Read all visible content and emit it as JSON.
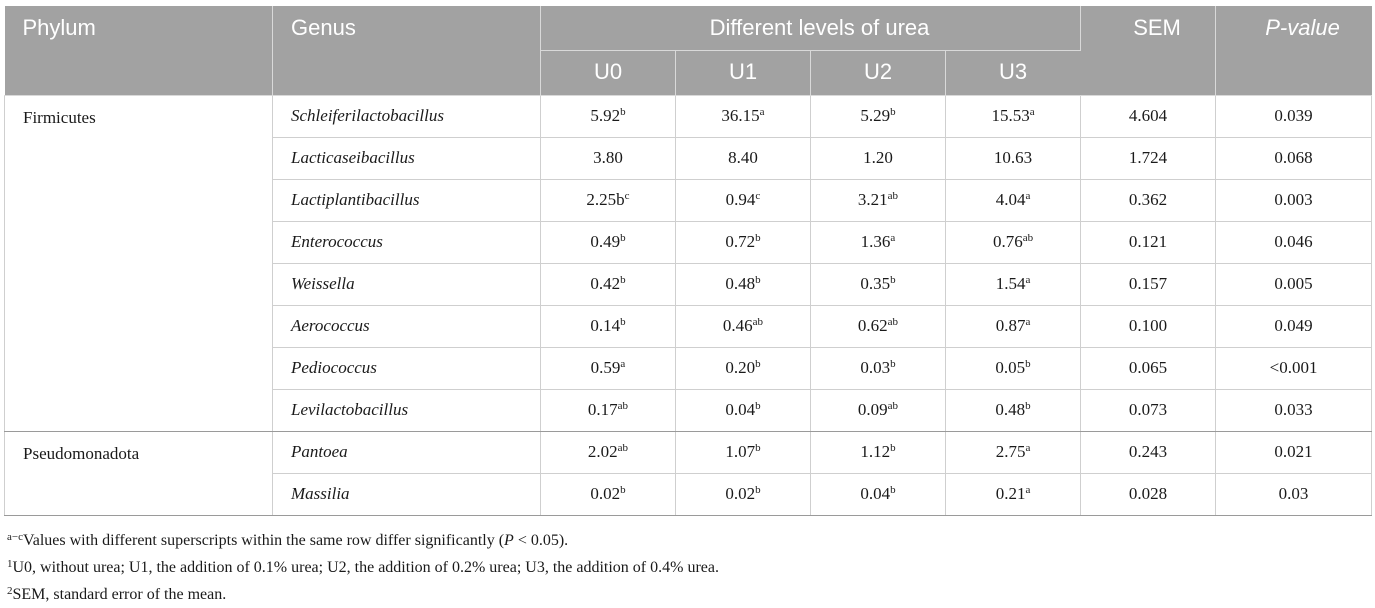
{
  "table": {
    "headers": {
      "phylum": "Phylum",
      "genus": "Genus",
      "levels": "Different levels of urea",
      "levels_sub": [
        "U0",
        "U1",
        "U2",
        "U3"
      ],
      "sem": "SEM",
      "pvalue": "P-value"
    },
    "groups": [
      {
        "phylum": "Firmicutes",
        "rows": [
          {
            "genus": "Schleiferilactobacillus",
            "cells": [
              {
                "v": "5.92",
                "s": "b"
              },
              {
                "v": "36.15",
                "s": "a"
              },
              {
                "v": "5.29",
                "s": "b"
              },
              {
                "v": "15.53",
                "s": "a"
              }
            ],
            "sem": "4.604",
            "p": "0.039"
          },
          {
            "genus": "Lacticaseibacillus",
            "cells": [
              {
                "v": "3.80",
                "s": ""
              },
              {
                "v": "8.40",
                "s": ""
              },
              {
                "v": "1.20",
                "s": ""
              },
              {
                "v": "10.63",
                "s": ""
              }
            ],
            "sem": "1.724",
            "p": "0.068"
          },
          {
            "genus": "Lactiplantibacillus",
            "cells": [
              {
                "v": "2.25b",
                "s": "c"
              },
              {
                "v": "0.94",
                "s": "c"
              },
              {
                "v": "3.21",
                "s": "ab"
              },
              {
                "v": "4.04",
                "s": "a"
              }
            ],
            "sem": "0.362",
            "p": "0.003"
          },
          {
            "genus": "Enterococcus",
            "cells": [
              {
                "v": "0.49",
                "s": "b"
              },
              {
                "v": "0.72",
                "s": "b"
              },
              {
                "v": "1.36",
                "s": "a"
              },
              {
                "v": "0.76",
                "s": "ab"
              }
            ],
            "sem": "0.121",
            "p": "0.046"
          },
          {
            "genus": "Weissella",
            "cells": [
              {
                "v": "0.42",
                "s": "b"
              },
              {
                "v": "0.48",
                "s": "b"
              },
              {
                "v": "0.35",
                "s": "b"
              },
              {
                "v": "1.54",
                "s": "a"
              }
            ],
            "sem": "0.157",
            "p": "0.005"
          },
          {
            "genus": "Aerococcus",
            "cells": [
              {
                "v": "0.14",
                "s": "b"
              },
              {
                "v": "0.46",
                "s": "ab"
              },
              {
                "v": "0.62",
                "s": "ab"
              },
              {
                "v": "0.87",
                "s": "a"
              }
            ],
            "sem": "0.100",
            "p": "0.049"
          },
          {
            "genus": "Pediococcus",
            "cells": [
              {
                "v": "0.59",
                "s": "a"
              },
              {
                "v": "0.20",
                "s": "b"
              },
              {
                "v": "0.03",
                "s": "b"
              },
              {
                "v": "0.05",
                "s": "b"
              }
            ],
            "sem": "0.065",
            "p": "<0.001"
          },
          {
            "genus": "Levilactobacillus",
            "cells": [
              {
                "v": "0.17",
                "s": "ab"
              },
              {
                "v": "0.04",
                "s": "b"
              },
              {
                "v": "0.09",
                "s": "ab"
              },
              {
                "v": "0.48",
                "s": "b"
              }
            ],
            "sem": "0.073",
            "p": "0.033"
          }
        ]
      },
      {
        "phylum": "Pseudomonadota",
        "rows": [
          {
            "genus": "Pantoea",
            "cells": [
              {
                "v": "2.02",
                "s": "ab"
              },
              {
                "v": "1.07",
                "s": "b"
              },
              {
                "v": "1.12",
                "s": "b"
              },
              {
                "v": "2.75",
                "s": "a"
              }
            ],
            "sem": "0.243",
            "p": "0.021"
          },
          {
            "genus": "Massilia",
            "cells": [
              {
                "v": "0.02",
                "s": "b"
              },
              {
                "v": "0.02",
                "s": "b"
              },
              {
                "v": "0.04",
                "s": "b"
              },
              {
                "v": "0.21",
                "s": "a"
              }
            ],
            "sem": "0.028",
            "p": "0.03"
          }
        ]
      }
    ]
  },
  "footnotes": {
    "n1_mark": "a−c",
    "n1_text": "Values with different superscripts within the same row differ significantly (",
    "n1_p": "P",
    "n1_tail": " < 0.05).",
    "n2_mark": "1",
    "n2_text": "U0, without urea; U1, the addition of 0.1% urea; U2, the addition of 0.2% urea; U3, the addition of 0.4% urea.",
    "n3_mark": "2",
    "n3_text": "SEM, standard error of the mean."
  }
}
